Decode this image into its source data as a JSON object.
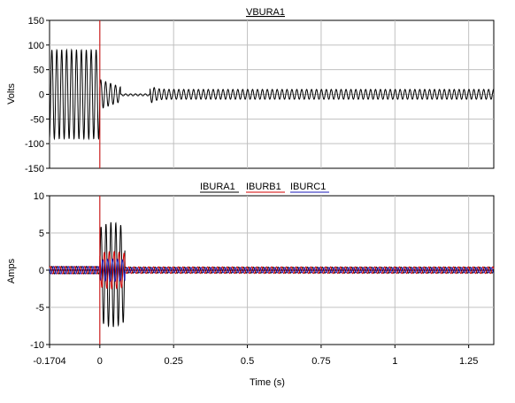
{
  "colors": {
    "black": "#000000",
    "red": "#d40000",
    "blue": "#1a1ab8",
    "marker": "#cc0000",
    "grid": "#c0c0c0"
  },
  "chart_data": [
    {
      "type": "line",
      "title": "VBURA1",
      "ylabel": "Volts",
      "xlabel": "",
      "xlim": [
        -0.1704,
        1.335
      ],
      "ylim": [
        -150,
        150
      ],
      "yticks": [
        "150",
        "100",
        "50",
        "0",
        "-50",
        "-100",
        "-150"
      ],
      "ytick_values": [
        150,
        100,
        50,
        0,
        -50,
        -100,
        -150
      ],
      "grid": true,
      "marker_x": 0,
      "series": [
        {
          "name": "VBURA1",
          "color": "#000000",
          "segments": [
            {
              "x_start": -0.1704,
              "x_end": 0.0,
              "amplitude": 90,
              "freq_hz": 60
            },
            {
              "x_start": 0.0,
              "x_end": 0.07,
              "amplitude": 30,
              "freq_hz": 60,
              "decay": true
            },
            {
              "x_start": 0.07,
              "x_end": 0.17,
              "amplitude": 2,
              "freq_hz": 60
            },
            {
              "x_start": 0.17,
              "x_end": 1.335,
              "amplitude": 10,
              "freq_hz": 60,
              "transient_peak": 20
            }
          ]
        }
      ]
    },
    {
      "type": "line",
      "title": "",
      "ylabel": "Amps",
      "xlabel": "Time (s)",
      "xlim": [
        -0.1704,
        1.335
      ],
      "ylim": [
        -10,
        10
      ],
      "yticks": [
        "10",
        "5",
        "0",
        "-5",
        "-10"
      ],
      "ytick_values": [
        10,
        5,
        0,
        -5,
        -10
      ],
      "xticks": [
        "-0.1704",
        "0",
        "0.25",
        "0.5",
        "0.75",
        "1",
        "1.25"
      ],
      "xtick_values": [
        -0.1704,
        0,
        0.25,
        0.5,
        0.75,
        1,
        1.25
      ],
      "grid": true,
      "marker_x": 0,
      "legend": [
        "IBURA1",
        "IBURB1",
        "IBURC1"
      ],
      "series": [
        {
          "name": "IBURA1",
          "color": "#000000",
          "pre_amplitude": 0.5,
          "fault_peak": 7,
          "fault_window": [
            0.0,
            0.085
          ],
          "post_amplitude": 0.4
        },
        {
          "name": "IBURB1",
          "color": "#d40000",
          "pre_amplitude": 0.5,
          "fault_peak": 2.5,
          "fault_window": [
            0.0,
            0.085
          ],
          "post_amplitude": 0.45
        },
        {
          "name": "IBURC1",
          "color": "#1a1ab8",
          "pre_amplitude": 0.5,
          "fault_peak": 1.5,
          "fault_window": [
            0.0,
            0.085
          ],
          "post_amplitude": 0.35
        }
      ]
    }
  ]
}
